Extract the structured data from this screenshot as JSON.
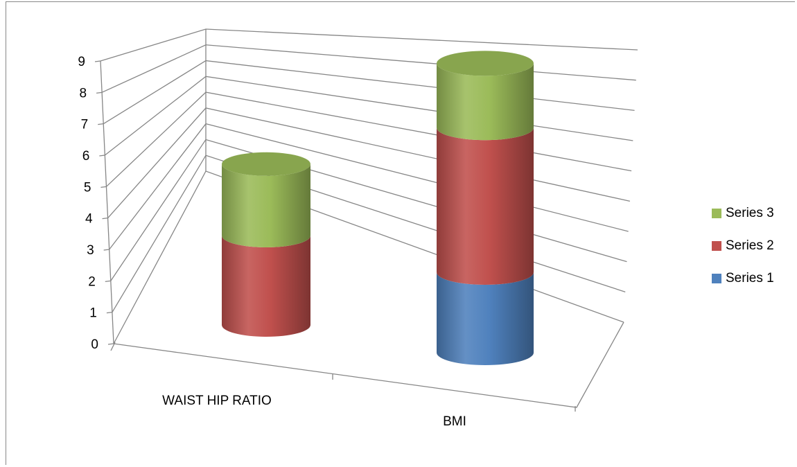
{
  "chart_data": {
    "type": "bar",
    "title": "",
    "xlabel": "",
    "ylabel": "",
    "ylim": [
      0,
      9
    ],
    "yticks": [
      "0",
      "1",
      "2",
      "3",
      "4",
      "5",
      "6",
      "7",
      "8",
      "9"
    ],
    "categories": [
      "WAIST HIP RATIO",
      "BMI"
    ],
    "stacked": true,
    "style": "3d-cylinder",
    "grid": true,
    "legend_position": "right",
    "series": [
      {
        "name": "Series 1",
        "color": "#4F81BD",
        "values": [
          0,
          2.5
        ]
      },
      {
        "name": "Series 2",
        "color": "#C0504D",
        "values": [
          2.5,
          4.5
        ]
      },
      {
        "name": "Series 3",
        "color": "#9BBB59",
        "values": [
          2.0,
          2.0
        ]
      }
    ]
  },
  "legend": {
    "items": [
      {
        "label": "Series 3",
        "color": "#9BBB59"
      },
      {
        "label": "Series 2",
        "color": "#C0504D"
      },
      {
        "label": "Series 1",
        "color": "#4F81BD"
      }
    ]
  }
}
